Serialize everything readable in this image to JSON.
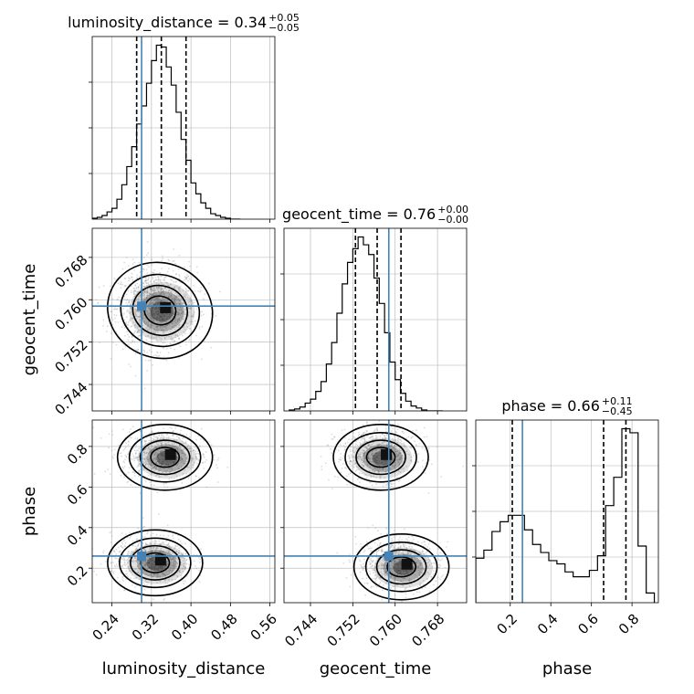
{
  "chart_data": {
    "type": "corner",
    "parameters": [
      "luminosity_distance",
      "geocent_time",
      "phase"
    ],
    "titles": [
      {
        "parameter": "luminosity_distance",
        "prefix": "luminosity_distance = 0.34",
        "upper": "+0.05",
        "lower": "−0.05"
      },
      {
        "parameter": "geocent_time",
        "prefix": "geocent_time = 0.76",
        "upper": "+0.00",
        "lower": "−0.00"
      },
      {
        "parameter": "phase",
        "prefix": "phase = 0.66",
        "upper": "+0.11",
        "lower": "−0.45"
      }
    ],
    "ranges": {
      "luminosity_distance": [
        0.2,
        0.57
      ],
      "geocent_time": [
        0.739,
        0.7735
      ],
      "phase": [
        0.03,
        0.93
      ]
    },
    "ticks": {
      "luminosity_distance": [
        "0.24",
        "0.32",
        "0.40",
        "0.48",
        "0.56"
      ],
      "geocent_time": [
        "0.744",
        "0.752",
        "0.760",
        "0.768"
      ],
      "phase": [
        "0.2",
        "0.4",
        "0.6",
        "0.8"
      ]
    },
    "truths": {
      "luminosity_distance": 0.3,
      "geocent_time": 0.7588,
      "phase": 0.26
    },
    "quantiles": {
      "luminosity_distance": [
        0.29,
        0.34,
        0.39
      ],
      "geocent_time": [
        0.7525,
        0.7566,
        0.7611
      ],
      "phase": [
        0.21,
        0.66,
        0.77
      ]
    },
    "histograms": {
      "luminosity_distance": {
        "edges": [
          0.2,
          0.21,
          0.22,
          0.23,
          0.24,
          0.25,
          0.26,
          0.27,
          0.28,
          0.29,
          0.3,
          0.31,
          0.32,
          0.33,
          0.34,
          0.35,
          0.36,
          0.37,
          0.38,
          0.39,
          0.4,
          0.41,
          0.42,
          0.43,
          0.44,
          0.45,
          0.46,
          0.47,
          0.48,
          0.49,
          0.5
        ],
        "counts": [
          1,
          2,
          4,
          8,
          12,
          22,
          38,
          58,
          80,
          105,
          125,
          150,
          175,
          192,
          190,
          168,
          148,
          118,
          88,
          65,
          40,
          28,
          18,
          12,
          6,
          4,
          2,
          1,
          0,
          0
        ]
      },
      "geocent_time": {
        "edges": [
          0.74,
          0.741,
          0.742,
          0.743,
          0.744,
          0.745,
          0.746,
          0.747,
          0.748,
          0.749,
          0.75,
          0.751,
          0.752,
          0.753,
          0.754,
          0.755,
          0.756,
          0.757,
          0.758,
          0.759,
          0.76,
          0.761,
          0.762,
          0.763,
          0.764,
          0.765,
          0.766,
          0.767,
          0.768,
          0.769
        ],
        "counts": [
          1,
          2,
          4,
          8,
          12,
          20,
          30,
          48,
          70,
          100,
          130,
          152,
          166,
          178,
          170,
          160,
          136,
          110,
          80,
          50,
          32,
          18,
          10,
          5,
          3,
          1,
          0,
          0,
          0
        ]
      },
      "phase": {
        "edges": [
          0.03,
          0.07,
          0.11,
          0.15,
          0.19,
          0.23,
          0.27,
          0.31,
          0.35,
          0.39,
          0.43,
          0.47,
          0.51,
          0.55,
          0.59,
          0.63,
          0.67,
          0.71,
          0.75,
          0.79,
          0.83,
          0.87,
          0.91
        ],
        "counts": [
          55,
          65,
          88,
          100,
          108,
          108,
          90,
          72,
          62,
          52,
          48,
          38,
          32,
          32,
          40,
          58,
          120,
          155,
          215,
          210,
          70,
          12
        ]
      }
    },
    "plot_2d": [
      {
        "x": "luminosity_distance",
        "y": "geocent_time",
        "peaks": [
          {
            "x": 0.33,
            "y": 0.7585
          }
        ],
        "contour_levels": 4
      },
      {
        "x": "luminosity_distance",
        "y": "phase",
        "peaks": [
          {
            "x": 0.34,
            "y": 0.76
          },
          {
            "x": 0.32,
            "y": 0.24
          }
        ],
        "contour_levels": 4
      },
      {
        "x": "geocent_time",
        "y": "phase",
        "peaks": [
          {
            "x": 0.7566,
            "y": 0.76
          },
          {
            "x": 0.7605,
            "y": 0.22
          }
        ],
        "contour_levels": 4
      }
    ],
    "colors": {
      "truth": "#4682b4",
      "line": "#000000",
      "grid": "#b0b0b0",
      "scatter": "#9a9a9a"
    },
    "grid": true
  }
}
